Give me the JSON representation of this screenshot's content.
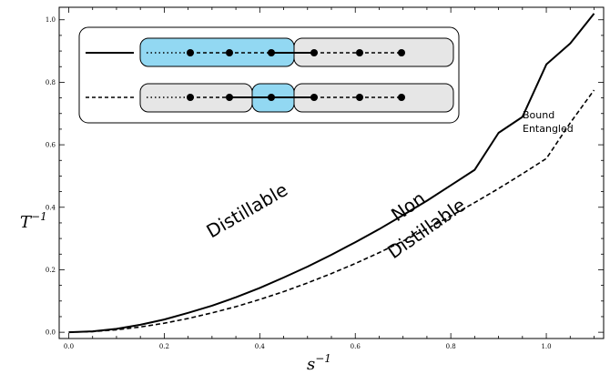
{
  "chart_data": {
    "type": "line",
    "xlim": [
      -0.02,
      1.12
    ],
    "ylim": [
      -0.02,
      1.04
    ],
    "x_ticks": [
      0.0,
      0.2,
      0.4,
      0.6,
      0.8,
      1.0
    ],
    "y_ticks": [
      0.0,
      0.2,
      0.4,
      0.6,
      0.8,
      1.0
    ],
    "x_tick_labels": [
      "0.0",
      "0.2",
      "0.4",
      "0.6",
      "0.8",
      "1.0"
    ],
    "y_tick_labels": [
      "0.0",
      "0.2",
      "0.4",
      "0.6",
      "0.8",
      "1.0"
    ],
    "xlabel": {
      "base": "s",
      "sup": "−1"
    },
    "ylabel": {
      "base": "T",
      "sup": "−1"
    },
    "series": [
      {
        "style": "solid",
        "x": [
          0.0,
          0.05,
          0.1,
          0.15,
          0.2,
          0.25,
          0.3,
          0.35,
          0.4,
          0.45,
          0.5,
          0.55,
          0.6,
          0.65,
          0.7,
          0.75,
          0.8,
          0.85,
          0.9,
          0.95,
          1.0,
          1.05,
          1.1
        ],
        "y": [
          0.0,
          0.003,
          0.011,
          0.024,
          0.041,
          0.062,
          0.085,
          0.112,
          0.142,
          0.175,
          0.21,
          0.248,
          0.288,
          0.33,
          0.375,
          0.421,
          0.47,
          0.52,
          0.638,
          0.689,
          0.857,
          0.924,
          1.02
        ]
      },
      {
        "style": "dashed",
        "x": [
          0.0,
          0.05,
          0.1,
          0.15,
          0.2,
          0.25,
          0.3,
          0.35,
          0.4,
          0.45,
          0.5,
          0.55,
          0.6,
          0.65,
          0.7,
          0.75,
          0.8,
          0.85,
          0.9,
          0.95,
          1.0,
          1.05,
          1.1
        ],
        "y": [
          0.0,
          0.002,
          0.008,
          0.017,
          0.029,
          0.044,
          0.062,
          0.082,
          0.105,
          0.13,
          0.158,
          0.188,
          0.22,
          0.255,
          0.292,
          0.331,
          0.372,
          0.415,
          0.46,
          0.507,
          0.556,
          0.67,
          0.775
        ]
      }
    ],
    "annotations": {
      "distillable": "Distillable",
      "non": "Non",
      "non_distillable": "Distillable",
      "bound": "Bound",
      "entangled": "Entangled"
    },
    "inset": {
      "top_row": {
        "highlighted_block": "left",
        "dots_solid_from": 2,
        "dots": 6
      },
      "bottom_row": {
        "highlighted_block": "middle",
        "dots": 6
      },
      "colors": {
        "highlight": "#92d8f2",
        "block": "#e6e6e6",
        "stroke": "#000000"
      }
    }
  }
}
